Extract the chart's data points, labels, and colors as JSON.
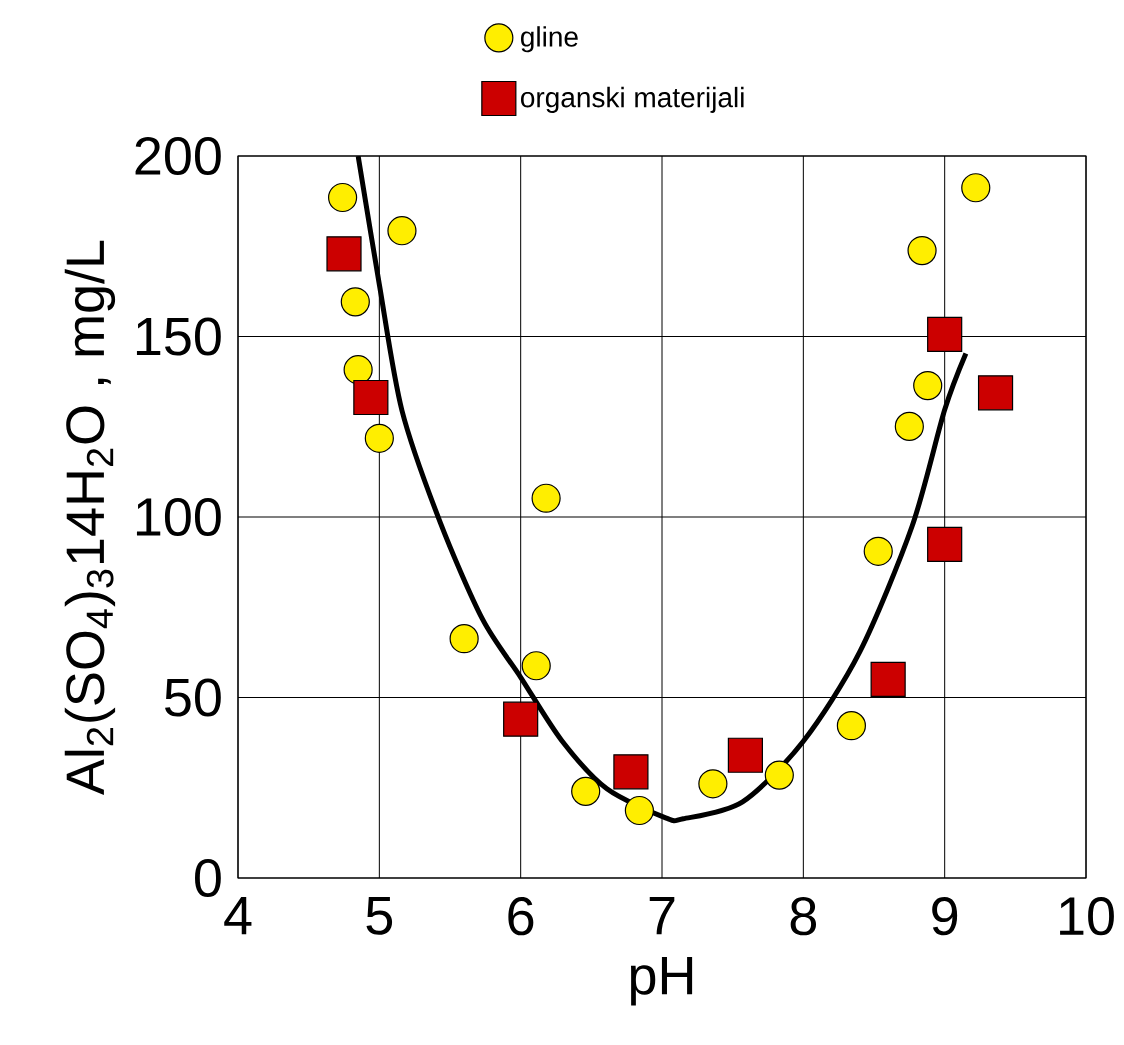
{
  "chart_data": {
    "type": "scatter",
    "xlabel": "pH",
    "ylabel": "Al$_{2}$(SO$_{4}$)$_{3}$14H$_{2}$O , mg/L",
    "xlim": [
      4,
      10
    ],
    "ylim": [
      0,
      200
    ],
    "xticks": [
      4,
      5,
      6,
      7,
      8,
      9,
      10
    ],
    "yticks": [
      0,
      50,
      100,
      150,
      200
    ],
    "grid": true,
    "legend": "top",
    "series": [
      {
        "name": "gline",
        "color": "#ffee00",
        "marker": "circle",
        "x": [
          4.74,
          5.16,
          4.83,
          4.85,
          5.0,
          6.18,
          5.6,
          6.11,
          6.46,
          6.84,
          9.22,
          8.84,
          8.88,
          8.75,
          8.53,
          8.34,
          7.83,
          7.36
        ],
        "values": [
          188.5,
          179.3,
          159.6,
          140.8,
          121.8,
          105.2,
          66.3,
          58.8,
          24.0,
          18.7,
          191.2,
          173.8,
          136.4,
          125.1,
          90.5,
          42.2,
          28.5,
          26.1
        ]
      },
      {
        "name": "organski materijali",
        "color": "#cc0000",
        "marker": "square",
        "x": [
          4.75,
          4.94,
          6.0,
          6.78,
          9.0,
          9.36,
          9.0,
          8.6,
          7.59
        ],
        "values": [
          172.9,
          133.1,
          44.0,
          29.4,
          150.6,
          134.4,
          92.4,
          55.0,
          34.0
        ]
      },
      {
        "type": "line",
        "color": "#000000",
        "marker": "none",
        "line_style": "solid",
        "x": [
          4.85,
          5.0,
          5.16,
          5.43,
          5.73,
          6.0,
          6.29,
          6.61,
          7.03,
          7.15,
          7.57,
          8.0,
          8.4,
          8.77,
          9.0,
          9.15
        ],
        "values": [
          200,
          164.4,
          129.5,
          98.6,
          71.7,
          55.6,
          38.1,
          24.7,
          16.6,
          16.4,
          21.1,
          37.9,
          62.7,
          97.5,
          129.7,
          145.3
        ]
      }
    ]
  }
}
